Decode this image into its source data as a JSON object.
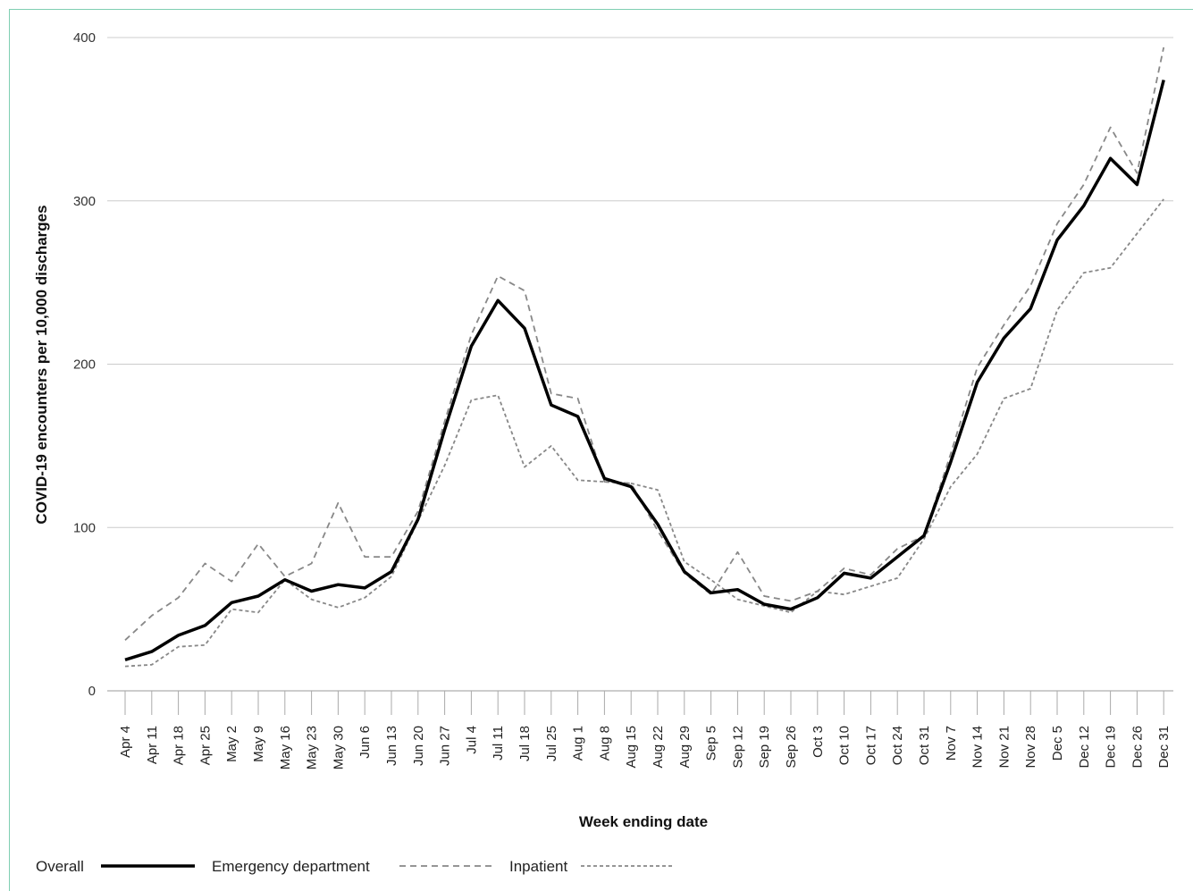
{
  "chart_data": {
    "type": "line",
    "title": "",
    "xlabel": "Week ending date",
    "ylabel": "COVID-19 encounters per 10,000 discharges",
    "ylim": [
      0,
      400
    ],
    "yticks": [
      "0",
      "100",
      "200",
      "300",
      "400"
    ],
    "grid": "horizontal",
    "legend_position": "bottom",
    "categories": [
      "Apr 4",
      "Apr 11",
      "Apr 18",
      "Apr 25",
      "May 2",
      "May 9",
      "May 16",
      "May 23",
      "May 30",
      "Jun 6",
      "Jun 13",
      "Jun 20",
      "Jun 27",
      "Jul 4",
      "Jul 11",
      "Jul 18",
      "Jul 25",
      "Aug 1",
      "Aug 8",
      "Aug 15",
      "Aug 22",
      "Aug 29",
      "Sep 5",
      "Sep 12",
      "Sep 19",
      "Sep 26",
      "Oct 3",
      "Oct 10",
      "Oct 17",
      "Oct 24",
      "Oct 31",
      "Nov 7",
      "Nov 14",
      "Nov 21",
      "Nov 28",
      "Dec 5",
      "Dec 12",
      "Dec 19",
      "Dec 26",
      "Dec 31"
    ],
    "series": [
      {
        "name": "Overall",
        "color": "#000000",
        "style": "solid",
        "values": [
          19,
          24,
          34,
          40,
          54,
          58,
          68,
          61,
          65,
          63,
          73,
          105,
          160,
          211,
          239,
          222,
          175,
          168,
          130,
          125,
          102,
          73,
          60,
          62,
          53,
          50,
          57,
          72,
          69,
          82,
          95,
          140,
          189,
          216,
          234,
          276,
          297,
          326,
          310,
          374
        ]
      },
      {
        "name": "Emergency department",
        "color": "#888888",
        "style": "dashed",
        "values": [
          31,
          46,
          57,
          78,
          67,
          90,
          70,
          78,
          115,
          82,
          82,
          110,
          165,
          218,
          254,
          245,
          182,
          179,
          128,
          127,
          98,
          72,
          59,
          85,
          58,
          55,
          61,
          75,
          71,
          87,
          95,
          145,
          198,
          224,
          248,
          286,
          310,
          345,
          317,
          394
        ]
      },
      {
        "name": "Inpatient",
        "color": "#888888",
        "style": "dashed",
        "values": [
          15,
          16,
          27,
          28,
          50,
          48,
          68,
          56,
          51,
          57,
          70,
          104,
          138,
          178,
          181,
          137,
          150,
          129,
          128,
          127,
          123,
          79,
          68,
          56,
          52,
          48,
          61,
          59,
          64,
          69,
          93,
          125,
          145,
          179,
          185,
          233,
          256,
          259,
          280,
          301
        ]
      }
    ]
  }
}
